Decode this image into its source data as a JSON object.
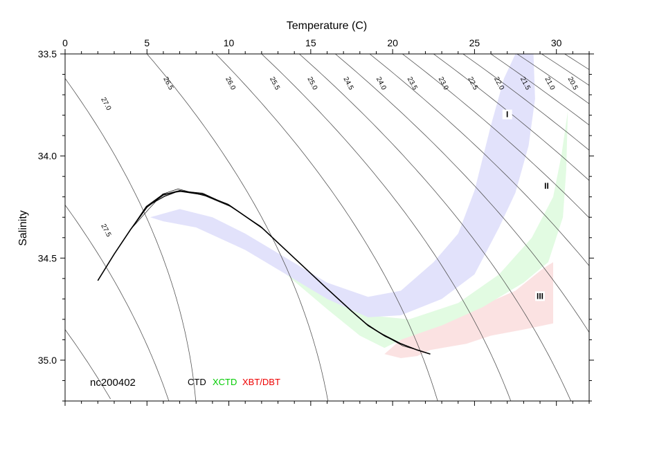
{
  "chart_data": {
    "type": "scatter",
    "title": "",
    "xlabel": "Temperature (C)",
    "ylabel": "Salinity",
    "xlim": [
      0,
      32
    ],
    "ylim": [
      35.2,
      33.5
    ],
    "x_ticks": [
      0,
      5,
      10,
      15,
      20,
      25,
      30
    ],
    "y_ticks": [
      33.5,
      34.0,
      34.5,
      35.0
    ],
    "y_tick_labels": [
      "33.5",
      "34.0",
      "34.5",
      "35.0"
    ],
    "x_axis_position": "top",
    "grid": false,
    "station": "nc200402",
    "legend": [
      {
        "label": "CTD",
        "color": "#000000"
      },
      {
        "label": "XCTD",
        "color": "#00cc00"
      },
      {
        "label": "XBT/DBT",
        "color": "#ee0000"
      }
    ],
    "density_isolines": [
      "27.5",
      "27.0",
      "26.5",
      "26.0",
      "25.5",
      "25.0",
      "24.5",
      "24.0",
      "23.5",
      "23.0",
      "22.5",
      "22.0",
      "21.5",
      "21.0",
      "20.5"
    ],
    "region_labels": [
      "I",
      "II",
      "III"
    ],
    "colors": {
      "band_I": "#e2e2fb",
      "band_II": "#e2fbe2",
      "band_III": "#fbe2e2",
      "profile": "#000000",
      "isoline": "#555555"
    },
    "series": [
      {
        "name": "CTD",
        "x": [
          2.0,
          3.0,
          4.0,
          5.0,
          6.0,
          7.0,
          8.5,
          10.0,
          12.0,
          14.0,
          16.0,
          17.5,
          18.5,
          19.5,
          20.5,
          21.5,
          22.3
        ],
        "y": [
          34.61,
          34.48,
          34.36,
          34.25,
          34.19,
          34.17,
          34.19,
          34.24,
          34.35,
          34.5,
          34.65,
          34.76,
          34.83,
          34.88,
          34.92,
          34.95,
          34.97
        ]
      }
    ]
  }
}
